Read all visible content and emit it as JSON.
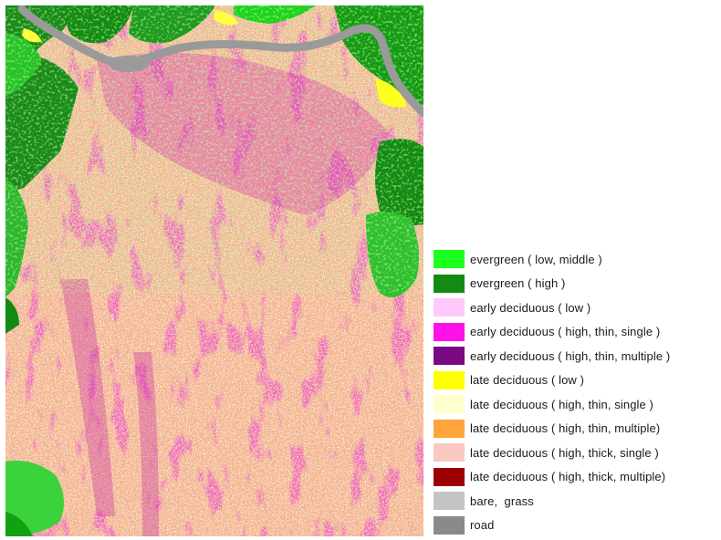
{
  "legend": {
    "items": [
      {
        "label": "evergreen ( low, middle )",
        "color": "#1dff1d"
      },
      {
        "label": "evergreen ( high )",
        "color": "#138a13"
      },
      {
        "label": "early deciduous ( low )",
        "color": "#ffc9fb"
      },
      {
        "label": "early deciduous ( high, thin, single )",
        "color": "#ff10e8"
      },
      {
        "label": "early deciduous ( high, thin, multiple )",
        "color": "#7a0a84"
      },
      {
        "label": "late deciduous ( low )",
        "color": "#ffff00"
      },
      {
        "label": "late deciduous ( high, thin, single )",
        "color": "#ffffcc"
      },
      {
        "label": "late deciduous ( high, thin, multiple)",
        "color": "#ffa53c"
      },
      {
        "label": "late deciduous ( high, thick, single )",
        "color": "#f9c8c0"
      },
      {
        "label": "late deciduous ( high, thick, multiple)",
        "color": "#9c0000"
      },
      {
        "label": "bare,  grass",
        "color": "#c4c4c4"
      },
      {
        "label": "road",
        "color": "#8a8a8a"
      }
    ]
  },
  "map": {
    "base_color": "#f0b394",
    "river_color": "#9a9a9a"
  }
}
